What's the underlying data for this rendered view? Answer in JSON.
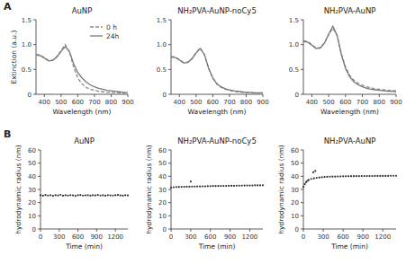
{
  "panel_labels": [
    "A",
    "B"
  ],
  "chart_data": [
    {
      "type": "line",
      "title": "AuNP",
      "x_label": "Wavelength (nm)",
      "y_label": "Extinction (a.u.)",
      "x": [
        350,
        375,
        400,
        425,
        450,
        475,
        500,
        525,
        550,
        575,
        600,
        625,
        650,
        675,
        700,
        725,
        750,
        775,
        800,
        825,
        850,
        875,
        900
      ],
      "xlim": [
        350,
        900
      ],
      "xticks": [
        400,
        500,
        600,
        700,
        800,
        900
      ],
      "ylim": [
        0,
        1.5
      ],
      "yticks": [
        0,
        0.5,
        {
          "value": 1,
          "label": "1.0"
        },
        1.5
      ],
      "legend": "top-right",
      "series": [
        {
          "name": "0 h",
          "color": "#8a8a8a",
          "line_style": "dashed",
          "values": [
            0.8,
            0.79,
            0.74,
            0.68,
            0.69,
            0.76,
            0.88,
            1.0,
            0.86,
            0.55,
            0.33,
            0.21,
            0.14,
            0.1,
            0.08,
            0.06,
            0.05,
            0.04,
            0.04,
            0.03,
            0.03,
            0.02,
            0.02
          ]
        },
        {
          "name": "24h",
          "color": "#7a7a7a",
          "line_style": "solid",
          "values": [
            0.79,
            0.78,
            0.73,
            0.67,
            0.68,
            0.75,
            0.86,
            0.96,
            0.86,
            0.62,
            0.44,
            0.33,
            0.25,
            0.19,
            0.15,
            0.12,
            0.1,
            0.08,
            0.07,
            0.06,
            0.05,
            0.04,
            0.04
          ]
        }
      ]
    },
    {
      "type": "line",
      "title": "NH₂PVA-AuNP-noCy5",
      "x_label": "Wavelength (nm)",
      "x": [
        350,
        375,
        400,
        425,
        450,
        475,
        500,
        525,
        550,
        575,
        600,
        625,
        650,
        675,
        700,
        725,
        750,
        775,
        800,
        825,
        850,
        875,
        900
      ],
      "xlim": [
        350,
        900
      ],
      "xticks": [
        400,
        500,
        600,
        700,
        800,
        900
      ],
      "ylim": [
        0,
        1.5
      ],
      "yticks": [
        0,
        0.5,
        {
          "value": 1,
          "label": "1.0"
        },
        1.5
      ],
      "series": [
        {
          "color": "#8a8a8a",
          "line_style": "dashed",
          "values": [
            0.76,
            0.75,
            0.7,
            0.64,
            0.65,
            0.72,
            0.84,
            0.93,
            0.8,
            0.52,
            0.32,
            0.2,
            0.14,
            0.1,
            0.08,
            0.06,
            0.05,
            0.04,
            0.04,
            0.03,
            0.03,
            0.02,
            0.02
          ]
        },
        {
          "color": "#7a7a7a",
          "line_style": "solid",
          "values": [
            0.75,
            0.74,
            0.69,
            0.63,
            0.64,
            0.71,
            0.83,
            0.92,
            0.8,
            0.53,
            0.33,
            0.21,
            0.15,
            0.11,
            0.09,
            0.07,
            0.06,
            0.05,
            0.04,
            0.04,
            0.03,
            0.03,
            0.03
          ]
        }
      ]
    },
    {
      "type": "line",
      "title": "NH₂PVA-AuNP",
      "x_label": "Wavelength (nm)",
      "x": [
        350,
        375,
        400,
        425,
        450,
        475,
        500,
        525,
        550,
        575,
        600,
        625,
        650,
        675,
        700,
        725,
        750,
        775,
        800,
        825,
        850,
        875,
        900
      ],
      "xlim": [
        350,
        900
      ],
      "xticks": [
        400,
        500,
        600,
        700,
        800,
        900
      ],
      "ylim": [
        0,
        1.5
      ],
      "yticks": [
        0,
        0.5,
        {
          "value": 1,
          "label": "1.0"
        },
        1.5
      ],
      "series": [
        {
          "color": "#8a8a8a",
          "line_style": "dashed",
          "values": [
            1.08,
            1.06,
            1.0,
            0.93,
            0.94,
            1.03,
            1.2,
            1.33,
            1.18,
            0.82,
            0.55,
            0.38,
            0.28,
            0.22,
            0.18,
            0.15,
            0.13,
            0.11,
            0.1,
            0.09,
            0.08,
            0.08,
            0.07
          ]
        },
        {
          "color": "#7a7a7a",
          "line_style": "solid",
          "values": [
            1.06,
            1.05,
            0.99,
            0.92,
            0.93,
            1.03,
            1.21,
            1.37,
            1.19,
            0.8,
            0.52,
            0.35,
            0.25,
            0.19,
            0.15,
            0.12,
            0.1,
            0.09,
            0.08,
            0.07,
            0.06,
            0.06,
            0.05
          ]
        }
      ]
    },
    {
      "type": "scatter",
      "title": "AuNP",
      "x_label": "Time (min)",
      "y_label": "hydrodynamic radius (nm)",
      "x": [
        0,
        40,
        80,
        120,
        160,
        200,
        240,
        280,
        320,
        360,
        400,
        440,
        480,
        520,
        560,
        600,
        640,
        680,
        720,
        760,
        800,
        840,
        880,
        920,
        960,
        1000,
        1040,
        1080,
        1120,
        1160,
        1200,
        1240,
        1280,
        1320,
        1360,
        1400
      ],
      "xlim": [
        0,
        1400
      ],
      "xticks": [
        0,
        300,
        600,
        900,
        1200
      ],
      "ylim": [
        0,
        60
      ],
      "yticks": [
        0,
        10,
        20,
        30,
        40,
        50,
        60
      ],
      "series": [
        {
          "color": "#333333",
          "marker": "dot",
          "values": [
            25.6,
            25.3,
            25.8,
            25.4,
            25.7,
            25.2,
            25.6,
            25.5,
            25.9,
            25.3,
            25.6,
            25.4,
            25.7,
            25.5,
            25.2,
            25.6,
            25.8,
            25.4,
            25.5,
            25.7,
            25.3,
            25.6,
            25.5,
            25.8,
            25.4,
            25.6,
            25.3,
            25.7,
            25.5,
            25.4,
            25.6,
            25.8,
            25.5,
            25.3,
            25.6,
            25.5
          ]
        }
      ]
    },
    {
      "type": "scatter",
      "title": "NH₂PVA-AuNP-noCy5",
      "x_label": "Time (min)",
      "y_label": "hydrodynamic radius (nm)",
      "x": [
        0,
        40,
        80,
        120,
        160,
        200,
        240,
        280,
        300,
        320,
        360,
        400,
        440,
        480,
        520,
        560,
        600,
        640,
        680,
        720,
        760,
        800,
        840,
        880,
        920,
        960,
        1000,
        1040,
        1080,
        1120,
        1160,
        1200,
        1240,
        1280,
        1320,
        1360,
        1400
      ],
      "xlim": [
        0,
        1400
      ],
      "xticks": [
        0,
        300,
        600,
        900,
        1200
      ],
      "ylim": [
        0,
        60
      ],
      "yticks": [
        0,
        10,
        20,
        30,
        40,
        50,
        60
      ],
      "series": [
        {
          "color": "#333333",
          "marker": "dot",
          "values": [
            31.5,
            31.7,
            31.8,
            31.9,
            32.0,
            32.0,
            32.1,
            32.1,
            36.0,
            32.2,
            32.2,
            32.3,
            32.3,
            32.4,
            32.4,
            32.5,
            32.5,
            32.6,
            32.6,
            32.6,
            32.7,
            32.7,
            32.7,
            32.8,
            32.8,
            32.8,
            32.9,
            32.9,
            32.9,
            33.0,
            33.0,
            33.0,
            33.0,
            33.1,
            33.1,
            33.1,
            33.2
          ]
        }
      ]
    },
    {
      "type": "scatter",
      "title": "NH₂PVA-AuNP",
      "x_label": "Time (min)",
      "y_label": "hydrodynamic radius (nm)",
      "x": [
        0,
        20,
        40,
        60,
        80,
        120,
        150,
        160,
        180,
        200,
        240,
        280,
        320,
        360,
        400,
        440,
        480,
        520,
        560,
        600,
        640,
        680,
        720,
        760,
        800,
        840,
        880,
        920,
        960,
        1000,
        1040,
        1080,
        1120,
        1160,
        1200,
        1240,
        1280,
        1320,
        1360,
        1400
      ],
      "xlim": [
        0,
        1400
      ],
      "xticks": [
        0,
        300,
        600,
        900,
        1200
      ],
      "ylim": [
        0,
        60
      ],
      "yticks": [
        0,
        10,
        20,
        30,
        40,
        50,
        60
      ],
      "series": [
        {
          "color": "#333333",
          "marker": "dot",
          "values": [
            32.0,
            34.0,
            35.5,
            36.5,
            37.2,
            38.0,
            43.0,
            38.4,
            44.0,
            38.8,
            39.1,
            39.3,
            39.5,
            39.6,
            39.7,
            39.8,
            39.8,
            39.9,
            39.9,
            40.0,
            40.0,
            40.0,
            40.1,
            40.1,
            40.1,
            40.1,
            40.2,
            40.2,
            40.2,
            40.2,
            40.2,
            40.3,
            40.3,
            40.3,
            40.3,
            40.3,
            40.3,
            40.4,
            40.4,
            40.4
          ]
        }
      ]
    }
  ]
}
